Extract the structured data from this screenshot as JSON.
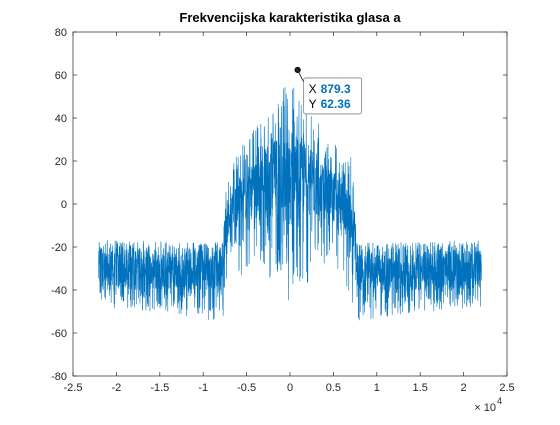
{
  "figure": {
    "background": "#ffffff"
  },
  "chart_data": {
    "type": "line",
    "title": "Frekvencijska karakteristika glasa a",
    "xlabel": "",
    "ylabel": "",
    "xlim": [
      -25000,
      25000
    ],
    "ylim": [
      -80,
      80
    ],
    "x_ticks": [
      -25000,
      -20000,
      -15000,
      -10000,
      -5000,
      0,
      5000,
      10000,
      15000,
      20000,
      25000
    ],
    "x_tick_labels": [
      "-2.5",
      "-2",
      "-1.5",
      "-1",
      "-0.5",
      "0",
      "0.5",
      "1",
      "1.5",
      "2",
      "2.5"
    ],
    "x_exponent_label": "× 10",
    "x_exponent_power": "4",
    "y_ticks": [
      -80,
      -60,
      -40,
      -20,
      0,
      20,
      40,
      60,
      80
    ],
    "y_tick_labels": [
      "-80",
      "-60",
      "-40",
      "-20",
      "0",
      "20",
      "40",
      "60",
      "80"
    ],
    "grid": false,
    "box": true,
    "series_color": "#0072BD",
    "series": [
      {
        "x_range": [
          -22050,
          22050
        ],
        "envelope": [
          {
            "x_abs": 0,
            "low": -62,
            "high": 62
          },
          {
            "x_abs": 500,
            "low": -30,
            "high": 58
          },
          {
            "x_abs": 1500,
            "low": -40,
            "high": 48
          },
          {
            "x_abs": 3000,
            "low": -30,
            "high": 40
          },
          {
            "x_abs": 4500,
            "low": -28,
            "high": 33
          },
          {
            "x_abs": 6000,
            "low": -38,
            "high": 25
          },
          {
            "x_abs": 7000,
            "low": -45,
            "high": 22
          },
          {
            "x_abs": 7400,
            "low": -50,
            "high": 5
          },
          {
            "x_abs": 7800,
            "low": -55,
            "high": -18
          },
          {
            "x_abs": 12000,
            "low": -52,
            "high": -18
          },
          {
            "x_abs": 16000,
            "low": -50,
            "high": -17
          },
          {
            "x_abs": 22050,
            "low": -48,
            "high": -17
          }
        ],
        "core": [
          {
            "x_abs": 0,
            "low": -5,
            "high": 40
          },
          {
            "x_abs": 3000,
            "low": -5,
            "high": 22
          },
          {
            "x_abs": 6000,
            "low": -10,
            "high": 12
          },
          {
            "x_abs": 7400,
            "low": -20,
            "high": 0
          },
          {
            "x_abs": 7800,
            "low": -40,
            "high": -22
          },
          {
            "x_abs": 22050,
            "low": -40,
            "high": -22
          }
        ]
      }
    ],
    "datatip": {
      "x": 879.3,
      "y": 62.36,
      "x_label": "X",
      "y_label": "Y",
      "x_value": "879.3",
      "y_value": "62.36",
      "value_color": "#0072BD"
    }
  }
}
